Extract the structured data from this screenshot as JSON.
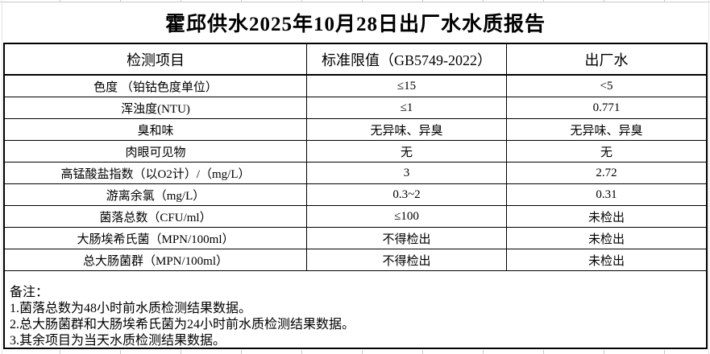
{
  "title": "霍邱供水2025年10月28日出厂水水质报告",
  "table": {
    "headers": [
      "检测项目",
      "标准限值（GB5749-2022）",
      "出厂水"
    ],
    "rows": [
      [
        "色度 （铂钴色度单位）",
        "≤15",
        "<5"
      ],
      [
        "浑浊度(NTU)",
        "≤1",
        "0.771"
      ],
      [
        "臭和味",
        "无异味、异臭",
        "无异味、异臭"
      ],
      [
        "肉眼可见物",
        "无",
        "无"
      ],
      [
        "高锰酸盐指数（以O2计）/（mg/L）",
        "3",
        "2.72"
      ],
      [
        "游离余氯（mg/L）",
        "0.3~2",
        "0.31"
      ],
      [
        "菌落总数（CFU/ml）",
        "≤100",
        "未检出"
      ],
      [
        "大肠埃希氏菌（MPN/100ml）",
        "不得检出",
        "未检出"
      ],
      [
        "总大肠菌群（MPN/100ml）",
        "不得检出",
        "未检出"
      ]
    ]
  },
  "notes": {
    "label": "备注：",
    "items": [
      "1.菌落总数为48小时前水质检测结果数据。",
      "2.总大肠菌群和大肠埃希氏菌为24小时前水质检测结果数据。",
      "3.其余项目为当天水质检测结果数据。"
    ]
  },
  "colors": {
    "border": "#000000",
    "gridline": "#c9c9c9",
    "text": "#000000",
    "background": "#ffffff"
  }
}
